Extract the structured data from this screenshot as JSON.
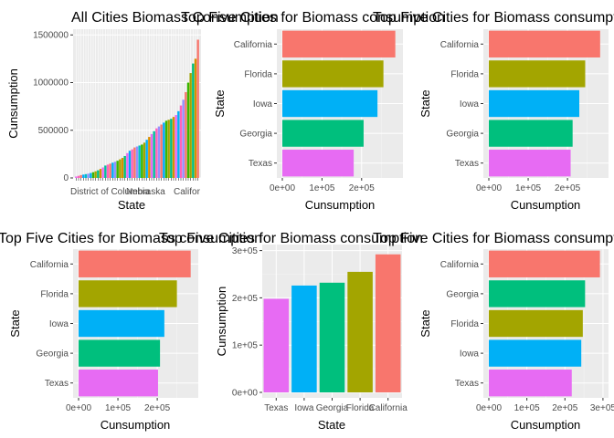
{
  "chart_data": [
    {
      "type": "bar",
      "title": "All Cities Biomass Consumption",
      "xlabel": "State",
      "ylabel": "Cunsumption",
      "ylim": [
        0,
        1500000
      ],
      "ticks": [
        0,
        500000,
        1000000,
        1500000
      ],
      "tick_labels": [
        "0",
        "500000",
        "1000000",
        "1500000"
      ],
      "shown_x_labels": [
        "District of Columbia",
        "Nebraska",
        "Califor"
      ],
      "values": [
        15000,
        22000,
        30000,
        35000,
        40000,
        45000,
        52000,
        60000,
        70000,
        80000,
        95000,
        110000,
        130000,
        140000,
        150000,
        160000,
        170000,
        180000,
        195000,
        210000,
        230000,
        260000,
        285000,
        300000,
        320000,
        330000,
        340000,
        350000,
        370000,
        400000,
        430000,
        460000,
        490000,
        520000,
        540000,
        560000,
        580000,
        600000,
        610000,
        620000,
        640000,
        660000,
        700000,
        760000,
        820000,
        900000,
        1000000,
        1100000,
        1200000,
        1250000,
        1450000
      ],
      "colors": [
        "#E76BF3",
        "#FF62BC",
        "#F8766D",
        "#00A9FF",
        "#00BFC4",
        "#9590FF",
        "#00B0F6",
        "#39B600",
        "#A3A500",
        "#00BF7D",
        "#D89000",
        "#E76BF3",
        "#00C19A",
        "#FF62BC",
        "#F8766D",
        "#00B0F6",
        "#9590FF",
        "#39B600",
        "#A3A500",
        "#D89000",
        "#00BF7D",
        "#E76BF3",
        "#00A9FF",
        "#FF62BC",
        "#F8766D",
        "#9590FF",
        "#00BFC4",
        "#39B600",
        "#A3A500",
        "#00B0F6",
        "#D89000",
        "#E76BF3",
        "#00C19A",
        "#FF62BC",
        "#9590FF",
        "#F8766D",
        "#00A9FF",
        "#39B600",
        "#A3A500",
        "#00BF7D",
        "#D89000",
        "#E76BF3",
        "#00B0F6",
        "#FF62BC",
        "#9590FF",
        "#F8766D",
        "#39B600",
        "#A3A500",
        "#00BF7D",
        "#D89000",
        "#F8766D"
      ]
    },
    {
      "type": "bar",
      "orientation": "horizontal",
      "title": "Top Five Cities for Biomass consumption",
      "xlabel": "Cunsumption",
      "ylabel": "State",
      "categories": [
        "Texas",
        "Georgia",
        "Iowa",
        "Florida",
        "California"
      ],
      "values": [
        180000,
        205000,
        240000,
        255000,
        285000
      ],
      "colors": [
        "#E76BF3",
        "#00BF7D",
        "#00B0F6",
        "#A3A500",
        "#F8766D"
      ],
      "xlim": [
        0,
        295000
      ],
      "ticks": [
        0,
        100000,
        200000
      ],
      "tick_labels": [
        "0e+00",
        "1e+05",
        "2e+05"
      ]
    },
    {
      "type": "bar",
      "orientation": "horizontal",
      "title": "Top Five Cities for Biomass consumption",
      "xlabel": "Cunsumption",
      "ylabel": "State",
      "categories": [
        "Texas",
        "Georgia",
        "Iowa",
        "Florida",
        "California"
      ],
      "values": [
        208000,
        213000,
        230000,
        245000,
        283000
      ],
      "colors": [
        "#E76BF3",
        "#00BF7D",
        "#00B0F6",
        "#A3A500",
        "#F8766D"
      ],
      "xlim": [
        0,
        295000
      ],
      "ticks": [
        0,
        100000,
        200000
      ],
      "tick_labels": [
        "0e+00",
        "1e+05",
        "2e+05"
      ]
    },
    {
      "type": "bar",
      "orientation": "horizontal",
      "title": "Top Five Cities for Biomass consumption",
      "xlabel": "Cunsumption",
      "ylabel": "State",
      "categories": [
        "Texas",
        "Georgia",
        "Iowa",
        "Florida",
        "California"
      ],
      "values": [
        202000,
        207000,
        218000,
        250000,
        285000
      ],
      "colors": [
        "#E76BF3",
        "#00BF7D",
        "#00B0F6",
        "#A3A500",
        "#F8766D"
      ],
      "xlim": [
        0,
        295000
      ],
      "ticks": [
        0,
        100000,
        200000
      ],
      "tick_labels": [
        "0e+00",
        "1e+05",
        "2e+05"
      ]
    },
    {
      "type": "bar",
      "title": "Top Five Cities for Biomass consumption",
      "xlabel": "State",
      "ylabel": "Cunsumption",
      "categories": [
        "Texas",
        "Iowa",
        "Georgia",
        "Florida",
        "California"
      ],
      "values": [
        198000,
        226000,
        232000,
        255000,
        292000
      ],
      "colors": [
        "#E76BF3",
        "#00B0F6",
        "#00BF7D",
        "#A3A500",
        "#F8766D"
      ],
      "ylim": [
        0,
        305000
      ],
      "ticks": [
        0,
        100000,
        200000,
        300000
      ],
      "tick_labels": [
        "0e+00",
        "1e+05",
        "2e+05",
        "3e+05"
      ]
    },
    {
      "type": "bar",
      "orientation": "horizontal",
      "title": "Top Five Cities for Biomass consumption",
      "xlabel": "Cunsumption",
      "ylabel": "State",
      "categories": [
        "Texas",
        "Iowa",
        "Florida",
        "Georgia",
        "California"
      ],
      "values": [
        218000,
        243000,
        247000,
        253000,
        292000
      ],
      "colors": [
        "#E76BF3",
        "#00B0F6",
        "#A3A500",
        "#00BF7D",
        "#F8766D"
      ],
      "xlim": [
        0,
        305000
      ],
      "ticks": [
        0,
        100000,
        200000,
        300000
      ],
      "tick_labels": [
        "0e+00",
        "1e+05",
        "2e+05",
        "3e+05"
      ]
    }
  ]
}
